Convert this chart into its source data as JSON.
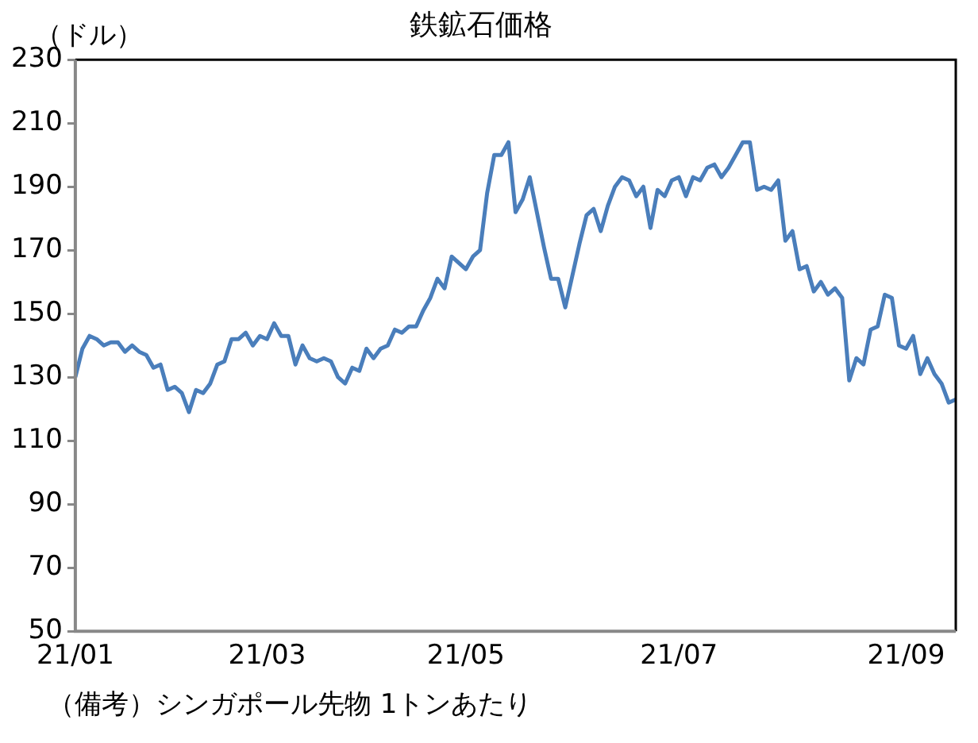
{
  "chart_data": {
    "type": "line",
    "title": "鉄鉱石価格",
    "ylabel": "（ドル）",
    "annotations": [
      "（備考）シンガポール先物 1トンあたり"
    ],
    "categories": [
      "21/01",
      null,
      null,
      null,
      null,
      null,
      null,
      null,
      null,
      null,
      null,
      null,
      null,
      null,
      null,
      null,
      null,
      null,
      null,
      null,
      null,
      null,
      null,
      null,
      null,
      null,
      null,
      "21/03",
      null,
      null,
      null,
      null,
      null,
      null,
      null,
      null,
      null,
      null,
      null,
      null,
      null,
      null,
      null,
      null,
      null,
      null,
      null,
      null,
      null,
      null,
      null,
      null,
      null,
      null,
      null,
      "21/05",
      null,
      null,
      null,
      null,
      null,
      null,
      null,
      null,
      null,
      null,
      null,
      null,
      null,
      null,
      null,
      null,
      null,
      null,
      null,
      null,
      null,
      null,
      null,
      null,
      null,
      null,
      null,
      null,
      null,
      "21/07",
      null,
      null,
      null,
      null,
      null,
      null,
      null,
      null,
      null,
      null,
      null,
      null,
      null,
      null,
      null,
      null,
      null,
      null,
      null,
      null,
      null,
      null,
      null,
      null,
      null,
      null,
      null,
      null,
      null,
      null,
      null,
      "21/09",
      null,
      null,
      null,
      null,
      null,
      null,
      null
    ],
    "series": [
      {
        "color": "#4a7ebb",
        "values": [
          130,
          139,
          143,
          142,
          140,
          141,
          141,
          138,
          140,
          138,
          137,
          133,
          134,
          126,
          127,
          125,
          119,
          126,
          125,
          128,
          134,
          135,
          142,
          142,
          144,
          140,
          143,
          142,
          147,
          143,
          143,
          134,
          140,
          136,
          135,
          136,
          135,
          130,
          128,
          133,
          132,
          139,
          136,
          139,
          140,
          145,
          144,
          146,
          146,
          151,
          155,
          161,
          158,
          168,
          166,
          164,
          168,
          170,
          188,
          200,
          200,
          204,
          182,
          186,
          193,
          182,
          171,
          161,
          161,
          152,
          162,
          172,
          181,
          183,
          176,
          184,
          190,
          193,
          192,
          187,
          190,
          177,
          189,
          187,
          192,
          193,
          187,
          193,
          192,
          196,
          197,
          193,
          196,
          200,
          204,
          204,
          189,
          190,
          189,
          192,
          173,
          176,
          164,
          165,
          157,
          160,
          156,
          158,
          155,
          129,
          136,
          134,
          145,
          146,
          156,
          155,
          140,
          139,
          143,
          131,
          136,
          131,
          128,
          122,
          123
        ]
      }
    ],
    "ylim": [
      50,
      230
    ],
    "yticks": [
      50,
      70,
      90,
      110,
      130,
      150,
      170,
      190,
      210,
      230
    ],
    "grid": false,
    "legend": false,
    "marker": "none",
    "line_style": "solid"
  }
}
